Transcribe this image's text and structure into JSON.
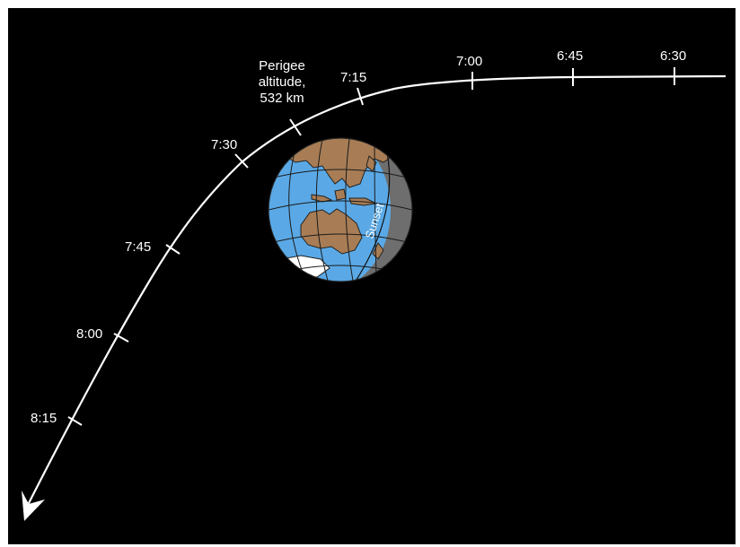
{
  "trajectory": {
    "ticks": [
      {
        "label": "6:30"
      },
      {
        "label": "6:45"
      },
      {
        "label": "7:00"
      },
      {
        "label": "7:15"
      },
      {
        "label": "7:30"
      },
      {
        "label": "7:45"
      },
      {
        "label": "8:00"
      },
      {
        "label": "8:15"
      }
    ],
    "perigee": {
      "line1": "Perigee",
      "line2": "altitude,",
      "line3": "532 km"
    }
  },
  "earth": {
    "terminator_label": "Sunset"
  },
  "colors": {
    "background": "#000000",
    "ocean": "#5aa9e6",
    "land": "#a87d55",
    "night_side": "#6e6e6e",
    "ice": "#ffffff",
    "path": "#ffffff"
  }
}
